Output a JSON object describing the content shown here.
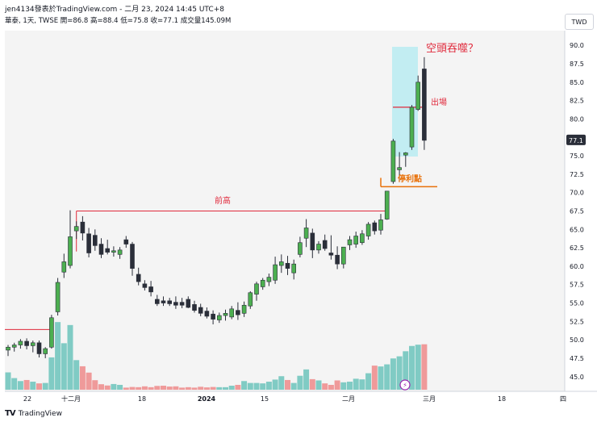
{
  "header": {
    "publish_line": "jen4134發表於TradingView.com - 二月 23, 2024 14:45 UTC+8",
    "ohlc_line": "華泰, 1天, TWSE  開=86.8  高=88.4  低=75.8  收=77.1  成交量145.09M",
    "currency": "TWD"
  },
  "footer": {
    "brand": "TradingView",
    "logo": "TV"
  },
  "colors": {
    "up": "#4caf50",
    "down": "#2a2e39",
    "vol_up": "#80cbc4",
    "vol_down": "#ef9a9a",
    "annot_red": "#e0293b",
    "annot_orange": "#e8710a",
    "highlight": "#b2ebf2"
  },
  "chart_data": {
    "type": "candlestick",
    "y_range": [
      43,
      92
    ],
    "y_ticks": [
      "90.0",
      "87.5",
      "85.0",
      "82.5",
      "80.0",
      "77.5",
      "75.0",
      "72.5",
      "70.0",
      "67.5",
      "65.0",
      "62.5",
      "60.0",
      "57.5",
      "55.0",
      "52.5",
      "50.0",
      "47.5",
      "45.0"
    ],
    "x_ticks": [
      "22",
      "十二月",
      "18",
      "2024",
      "15",
      "二月",
      "三月",
      "18",
      "四"
    ],
    "last_price": "77.1",
    "annotations": {
      "title": "空頭吞噬？",
      "exit": "出場",
      "take_profit": "停利點",
      "prev_high": "前高"
    },
    "candles": [
      {
        "o": 48.6,
        "h": 49.3,
        "l": 47.8,
        "c": 49.0
      },
      {
        "o": 49.0,
        "h": 49.6,
        "l": 48.4,
        "c": 49.3
      },
      {
        "o": 49.3,
        "h": 50.1,
        "l": 48.8,
        "c": 49.8
      },
      {
        "o": 49.8,
        "h": 50.2,
        "l": 48.7,
        "c": 49.2
      },
      {
        "o": 49.2,
        "h": 49.9,
        "l": 48.3,
        "c": 49.6
      },
      {
        "o": 49.6,
        "h": 49.9,
        "l": 47.6,
        "c": 48.1
      },
      {
        "o": 48.1,
        "h": 49.0,
        "l": 47.5,
        "c": 48.8
      },
      {
        "o": 49.0,
        "h": 53.4,
        "l": 48.8,
        "c": 53.0
      },
      {
        "o": 53.8,
        "h": 58.4,
        "l": 53.3,
        "c": 57.8
      },
      {
        "o": 59.2,
        "h": 61.7,
        "l": 58.4,
        "c": 60.6
      },
      {
        "o": 60.1,
        "h": 67.6,
        "l": 59.7,
        "c": 64.0
      },
      {
        "o": 64.8,
        "h": 66.1,
        "l": 63.7,
        "c": 65.4
      },
      {
        "o": 66.0,
        "h": 66.8,
        "l": 63.5,
        "c": 64.5
      },
      {
        "o": 64.4,
        "h": 65.2,
        "l": 61.2,
        "c": 61.8
      },
      {
        "o": 64.2,
        "h": 65.0,
        "l": 62.1,
        "c": 62.8
      },
      {
        "o": 63.0,
        "h": 63.8,
        "l": 61.1,
        "c": 61.6
      },
      {
        "o": 62.4,
        "h": 63.6,
        "l": 61.6,
        "c": 61.9
      },
      {
        "o": 61.9,
        "h": 62.7,
        "l": 61.3,
        "c": 62.1
      },
      {
        "o": 61.6,
        "h": 62.6,
        "l": 61.0,
        "c": 62.2
      },
      {
        "o": 63.6,
        "h": 64.1,
        "l": 62.5,
        "c": 63.0
      },
      {
        "o": 63.0,
        "h": 63.3,
        "l": 58.7,
        "c": 59.7
      },
      {
        "o": 58.9,
        "h": 59.8,
        "l": 57.4,
        "c": 57.9
      },
      {
        "o": 57.6,
        "h": 58.1,
        "l": 56.7,
        "c": 57.1
      },
      {
        "o": 57.2,
        "h": 58.0,
        "l": 55.9,
        "c": 56.5
      },
      {
        "o": 55.5,
        "h": 56.1,
        "l": 54.6,
        "c": 54.9
      },
      {
        "o": 55.3,
        "h": 55.9,
        "l": 54.6,
        "c": 55.0
      },
      {
        "o": 55.3,
        "h": 55.7,
        "l": 54.6,
        "c": 54.9
      },
      {
        "o": 55.1,
        "h": 55.9,
        "l": 54.2,
        "c": 54.7
      },
      {
        "o": 55.1,
        "h": 55.7,
        "l": 54.3,
        "c": 54.7
      },
      {
        "o": 55.5,
        "h": 55.9,
        "l": 54.3,
        "c": 54.4
      },
      {
        "o": 54.8,
        "h": 55.3,
        "l": 53.7,
        "c": 54.0
      },
      {
        "o": 54.4,
        "h": 54.9,
        "l": 53.2,
        "c": 53.6
      },
      {
        "o": 53.9,
        "h": 54.4,
        "l": 52.9,
        "c": 53.2
      },
      {
        "o": 53.5,
        "h": 54.0,
        "l": 52.1,
        "c": 52.8
      },
      {
        "o": 52.7,
        "h": 53.7,
        "l": 52.3,
        "c": 53.3
      },
      {
        "o": 53.3,
        "h": 54.1,
        "l": 52.6,
        "c": 53.6
      },
      {
        "o": 53.1,
        "h": 54.6,
        "l": 52.8,
        "c": 54.2
      },
      {
        "o": 54.0,
        "h": 55.1,
        "l": 52.7,
        "c": 53.4
      },
      {
        "o": 53.6,
        "h": 55.2,
        "l": 53.1,
        "c": 54.7
      },
      {
        "o": 54.6,
        "h": 56.6,
        "l": 54.2,
        "c": 56.4
      },
      {
        "o": 56.2,
        "h": 57.9,
        "l": 55.3,
        "c": 57.6
      },
      {
        "o": 57.2,
        "h": 58.4,
        "l": 56.8,
        "c": 58.1
      },
      {
        "o": 57.9,
        "h": 59.0,
        "l": 57.3,
        "c": 58.5
      },
      {
        "o": 58.1,
        "h": 61.3,
        "l": 57.6,
        "c": 60.2
      },
      {
        "o": 60.1,
        "h": 61.6,
        "l": 59.1,
        "c": 60.6
      },
      {
        "o": 60.4,
        "h": 61.4,
        "l": 58.8,
        "c": 59.7
      },
      {
        "o": 59.1,
        "h": 60.9,
        "l": 58.2,
        "c": 60.3
      },
      {
        "o": 61.6,
        "h": 64.0,
        "l": 61.2,
        "c": 63.2
      },
      {
        "o": 63.8,
        "h": 66.4,
        "l": 62.6,
        "c": 65.2
      },
      {
        "o": 64.5,
        "h": 65.1,
        "l": 61.1,
        "c": 62.2
      },
      {
        "o": 62.2,
        "h": 63.4,
        "l": 61.7,
        "c": 63.0
      },
      {
        "o": 63.5,
        "h": 64.3,
        "l": 62.1,
        "c": 62.4
      },
      {
        "o": 61.8,
        "h": 64.2,
        "l": 60.9,
        "c": 61.5
      },
      {
        "o": 61.5,
        "h": 62.7,
        "l": 59.6,
        "c": 60.3
      },
      {
        "o": 60.3,
        "h": 62.6,
        "l": 59.7,
        "c": 62.6
      },
      {
        "o": 62.9,
        "h": 64.1,
        "l": 62.2,
        "c": 63.6
      },
      {
        "o": 63.0,
        "h": 64.7,
        "l": 62.5,
        "c": 64.1
      },
      {
        "o": 63.2,
        "h": 64.9,
        "l": 62.9,
        "c": 64.4
      },
      {
        "o": 64.1,
        "h": 66.0,
        "l": 63.6,
        "c": 65.7
      },
      {
        "o": 65.9,
        "h": 66.2,
        "l": 64.3,
        "c": 64.8
      },
      {
        "o": 64.9,
        "h": 67.1,
        "l": 64.3,
        "c": 66.3
      },
      {
        "o": 66.4,
        "h": 70.2,
        "l": 66.3,
        "c": 70.2
      },
      {
        "o": 71.5,
        "h": 77.3,
        "l": 71.2,
        "c": 77.0
      },
      {
        "o": 73.1,
        "h": 75.5,
        "l": 71.5,
        "c": 73.4
      },
      {
        "o": 75.1,
        "h": 75.5,
        "l": 73.5,
        "c": 75.4
      },
      {
        "o": 76.2,
        "h": 81.9,
        "l": 75.8,
        "c": 81.6
      },
      {
        "o": 81.3,
        "h": 85.9,
        "l": 81.1,
        "c": 85.0
      },
      {
        "o": 86.8,
        "h": 88.4,
        "l": 75.8,
        "c": 77.1
      }
    ],
    "volume": [
      8.2,
      5.5,
      4.1,
      4.6,
      3.8,
      3.0,
      3.2,
      15.3,
      32.0,
      22.0,
      30.6,
      14.0,
      11.1,
      8.1,
      4.5,
      2.6,
      2.0,
      2.7,
      2.3,
      1.0,
      1.3,
      1.2,
      1.6,
      1.2,
      1.8,
      1.9,
      1.5,
      1.6,
      1.0,
      1.2,
      1.0,
      1.4,
      1.1,
      1.3,
      1.2,
      1.2,
      1.9,
      2.3,
      4.1,
      3.2,
      3.2,
      3.0,
      3.8,
      4.8,
      6.4,
      4.6,
      3.2,
      6.6,
      9.6,
      5.0,
      4.4,
      3.0,
      2.3,
      4.4,
      3.5,
      3.8,
      5.2,
      4.9,
      7.8,
      11.4,
      11.0,
      12.0,
      14.8,
      15.8,
      18.2,
      20.7,
      21.3,
      21.5
    ]
  }
}
